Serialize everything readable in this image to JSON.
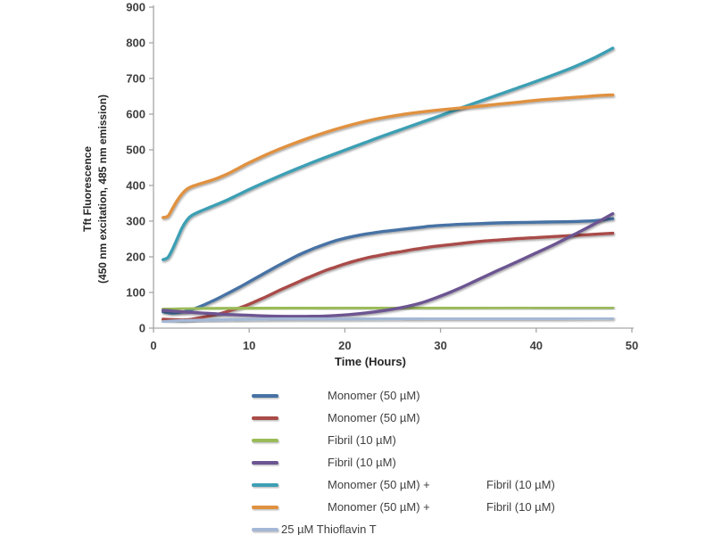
{
  "chart_data": {
    "type": "line",
    "title": "",
    "xlabel": "Time (Hours)",
    "ylabel_line1": "Tft Fluorescence",
    "ylabel_line2": "(450 nm excitation, 485 nm emission)",
    "xlim": [
      0,
      50
    ],
    "ylim": [
      0,
      900
    ],
    "xticks": [
      0,
      10,
      20,
      30,
      40,
      50
    ],
    "yticks": [
      0,
      100,
      200,
      300,
      400,
      500,
      600,
      700,
      800,
      900
    ],
    "grid": false,
    "legend_position": "bottom",
    "axis_color": "#a6a6a6",
    "tick_label_color": "#404040",
    "series": [
      {
        "name": "Monomer (50 µM)",
        "color": "#4672A4",
        "legend": {
          "label": "Monomer (50 µM)",
          "label2": "",
          "tight": false
        },
        "points": [
          [
            1,
            46
          ],
          [
            2,
            42
          ],
          [
            3,
            45
          ],
          [
            4,
            52
          ],
          [
            5,
            62
          ],
          [
            6,
            74
          ],
          [
            7,
            87
          ],
          [
            8,
            101
          ],
          [
            9,
            115
          ],
          [
            10,
            130
          ],
          [
            11,
            145
          ],
          [
            12,
            160
          ],
          [
            13,
            175
          ],
          [
            14,
            189
          ],
          [
            15,
            203
          ],
          [
            16,
            215
          ],
          [
            17,
            226
          ],
          [
            18,
            236
          ],
          [
            19,
            245
          ],
          [
            20,
            252
          ],
          [
            21,
            258
          ],
          [
            22,
            263
          ],
          [
            23,
            267
          ],
          [
            24,
            271
          ],
          [
            25,
            274
          ],
          [
            26,
            277
          ],
          [
            27,
            280
          ],
          [
            28,
            283
          ],
          [
            29,
            286
          ],
          [
            30,
            288
          ],
          [
            32,
            291
          ],
          [
            34,
            293
          ],
          [
            36,
            295
          ],
          [
            38,
            296
          ],
          [
            40,
            297
          ],
          [
            42,
            298
          ],
          [
            44,
            299
          ],
          [
            46,
            301
          ],
          [
            48,
            307
          ]
        ]
      },
      {
        "name": "Monomer (50 µM)",
        "color": "#A94C48",
        "legend": {
          "label": "Monomer (50 µM)",
          "label2": "",
          "tight": false
        },
        "points": [
          [
            1,
            25
          ],
          [
            2,
            24
          ],
          [
            3,
            23
          ],
          [
            4,
            25
          ],
          [
            5,
            30
          ],
          [
            6,
            35
          ],
          [
            7,
            41
          ],
          [
            8,
            49
          ],
          [
            9,
            57
          ],
          [
            10,
            67
          ],
          [
            11,
            79
          ],
          [
            12,
            91
          ],
          [
            13,
            104
          ],
          [
            14,
            116
          ],
          [
            15,
            128
          ],
          [
            16,
            140
          ],
          [
            17,
            151
          ],
          [
            18,
            162
          ],
          [
            19,
            171
          ],
          [
            20,
            180
          ],
          [
            21,
            188
          ],
          [
            22,
            195
          ],
          [
            23,
            201
          ],
          [
            24,
            206
          ],
          [
            25,
            211
          ],
          [
            26,
            215
          ],
          [
            27,
            220
          ],
          [
            28,
            224
          ],
          [
            29,
            228
          ],
          [
            30,
            231
          ],
          [
            32,
            237
          ],
          [
            34,
            243
          ],
          [
            36,
            247
          ],
          [
            38,
            251
          ],
          [
            40,
            254
          ],
          [
            42,
            257
          ],
          [
            44,
            260
          ],
          [
            46,
            263
          ],
          [
            48,
            266
          ]
        ]
      },
      {
        "name": "Fibril (10 µM)",
        "color": "#9ABB59",
        "legend": {
          "label": "Fibril (10 µM)",
          "label2": "",
          "tight": false
        },
        "points": [
          [
            1,
            53
          ],
          [
            6,
            55
          ],
          [
            12,
            56
          ],
          [
            20,
            57
          ],
          [
            30,
            57
          ],
          [
            40,
            58
          ],
          [
            48,
            58
          ]
        ]
      },
      {
        "name": "Fibril (10 µM)",
        "color": "#6C5591",
        "legend": {
          "label": "Fibril (10 µM)",
          "label2": "",
          "tight": false
        },
        "points": [
          [
            1,
            50
          ],
          [
            2,
            48
          ],
          [
            3,
            46
          ],
          [
            4,
            44
          ],
          [
            6,
            41
          ],
          [
            8,
            38
          ],
          [
            10,
            36
          ],
          [
            12,
            34
          ],
          [
            14,
            33
          ],
          [
            16,
            33
          ],
          [
            18,
            34
          ],
          [
            20,
            37
          ],
          [
            22,
            42
          ],
          [
            24,
            49
          ],
          [
            26,
            58
          ],
          [
            28,
            71
          ],
          [
            30,
            90
          ],
          [
            32,
            112
          ],
          [
            34,
            137
          ],
          [
            36,
            162
          ],
          [
            38,
            186
          ],
          [
            40,
            211
          ],
          [
            42,
            236
          ],
          [
            44,
            263
          ],
          [
            46,
            291
          ],
          [
            48,
            321
          ]
        ]
      },
      {
        "name": "Monomer (50 µM) + Fibril (10 µM)",
        "color": "#3E9FB4",
        "legend": {
          "label": "Monomer (50 µM) +",
          "label2": "Fibril (10 µM)",
          "tight": false
        },
        "points": [
          [
            1,
            192
          ],
          [
            1.5,
            198
          ],
          [
            2,
            222
          ],
          [
            2.5,
            252
          ],
          [
            3,
            282
          ],
          [
            3.5,
            303
          ],
          [
            4,
            316
          ],
          [
            5,
            329
          ],
          [
            6,
            340
          ],
          [
            7,
            351
          ],
          [
            8,
            363
          ],
          [
            9,
            376
          ],
          [
            10,
            389
          ],
          [
            12,
            413
          ],
          [
            14,
            436
          ],
          [
            16,
            458
          ],
          [
            18,
            479
          ],
          [
            20,
            499
          ],
          [
            22,
            519
          ],
          [
            24,
            539
          ],
          [
            26,
            558
          ],
          [
            28,
            577
          ],
          [
            30,
            596
          ],
          [
            32,
            616
          ],
          [
            34,
            635
          ],
          [
            36,
            654
          ],
          [
            38,
            673
          ],
          [
            40,
            692
          ],
          [
            42,
            712
          ],
          [
            44,
            733
          ],
          [
            46,
            757
          ],
          [
            48,
            785
          ]
        ]
      },
      {
        "name": "Monomer (50 µM) + Fibril (10 µM)",
        "color": "#E0913F",
        "legend": {
          "label": "Monomer (50 µM) +",
          "label2": "Fibril (10 µM)",
          "tight": false
        },
        "points": [
          [
            1,
            310
          ],
          [
            1.5,
            314
          ],
          [
            2,
            336
          ],
          [
            2.5,
            359
          ],
          [
            3,
            377
          ],
          [
            3.5,
            390
          ],
          [
            4,
            397
          ],
          [
            5,
            406
          ],
          [
            6,
            414
          ],
          [
            7,
            424
          ],
          [
            8,
            436
          ],
          [
            9,
            450
          ],
          [
            10,
            464
          ],
          [
            12,
            489
          ],
          [
            14,
            511
          ],
          [
            16,
            531
          ],
          [
            18,
            549
          ],
          [
            20,
            565
          ],
          [
            22,
            579
          ],
          [
            24,
            590
          ],
          [
            26,
            599
          ],
          [
            28,
            606
          ],
          [
            30,
            612
          ],
          [
            32,
            617
          ],
          [
            34,
            622
          ],
          [
            36,
            628
          ],
          [
            38,
            633
          ],
          [
            40,
            639
          ],
          [
            42,
            643
          ],
          [
            44,
            647
          ],
          [
            46,
            651
          ],
          [
            48,
            654
          ]
        ]
      },
      {
        "name": "25 µM Thioflavin T",
        "color": "#A4B8D5",
        "legend": {
          "label": "25 µM Thioflavin T",
          "label2": "",
          "tight": true
        },
        "points": [
          [
            1,
            18
          ],
          [
            3,
            21
          ],
          [
            6,
            23
          ],
          [
            10,
            25
          ],
          [
            15,
            26
          ],
          [
            20,
            26
          ],
          [
            30,
            27
          ],
          [
            40,
            27
          ],
          [
            48,
            28
          ]
        ]
      }
    ]
  }
}
